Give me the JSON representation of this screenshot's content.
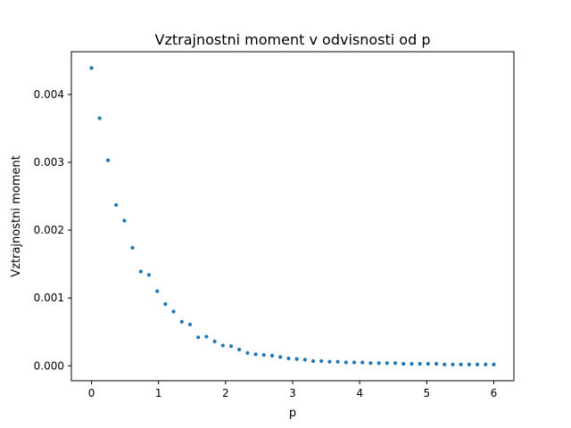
{
  "chart_data": {
    "type": "scatter",
    "title": "Vztrajnostni moment v odvisnosti od p",
    "xlabel": "p",
    "ylabel": "Vztrajnostni moment",
    "xlim": [
      -0.3,
      6.3
    ],
    "ylim": [
      -0.00022,
      0.00463
    ],
    "x_ticks": [
      0,
      1,
      2,
      3,
      4,
      5,
      6
    ],
    "x_tick_labels": [
      "0",
      "1",
      "2",
      "3",
      "4",
      "5",
      "6"
    ],
    "y_ticks": [
      0,
      0.001,
      0.002,
      0.003,
      0.004
    ],
    "y_tick_labels": [
      "0.000",
      "0.001",
      "0.002",
      "0.003",
      "0.004"
    ],
    "grid": false,
    "marker_color": "#1f77b4",
    "series": [
      {
        "x": [
          0,
          0.122,
          0.245,
          0.367,
          0.49,
          0.612,
          0.735,
          0.857,
          0.98,
          1.102,
          1.224,
          1.347,
          1.469,
          1.592,
          1.714,
          1.837,
          1.959,
          2.082,
          2.204,
          2.327,
          2.449,
          2.571,
          2.694,
          2.816,
          2.939,
          3.061,
          3.184,
          3.306,
          3.429,
          3.551,
          3.673,
          3.796,
          3.918,
          4.041,
          4.163,
          4.286,
          4.408,
          4.531,
          4.653,
          4.776,
          4.898,
          5.02,
          5.143,
          5.265,
          5.388,
          5.51,
          5.633,
          5.755,
          5.878,
          6.0
        ],
        "y": [
          0.00439,
          0.00365,
          0.00303,
          0.00237,
          0.00214,
          0.00174,
          0.00139,
          0.00134,
          0.0011,
          0.00091,
          0.0008,
          0.00065,
          0.00061,
          0.00042,
          0.00043,
          0.00036,
          0.0003,
          0.00029,
          0.00024,
          0.00019,
          0.00017,
          0.00016,
          0.00015,
          0.00013,
          0.00011,
          0.0001,
          9e-05,
          7e-05,
          7e-05,
          6e-05,
          6e-05,
          5e-05,
          5e-05,
          5e-05,
          4e-05,
          4e-05,
          4e-05,
          4e-05,
          3e-05,
          3e-05,
          3e-05,
          3e-05,
          3e-05,
          2e-05,
          2e-05,
          2e-05,
          2e-05,
          2e-05,
          2e-05,
          2e-05
        ]
      }
    ]
  }
}
